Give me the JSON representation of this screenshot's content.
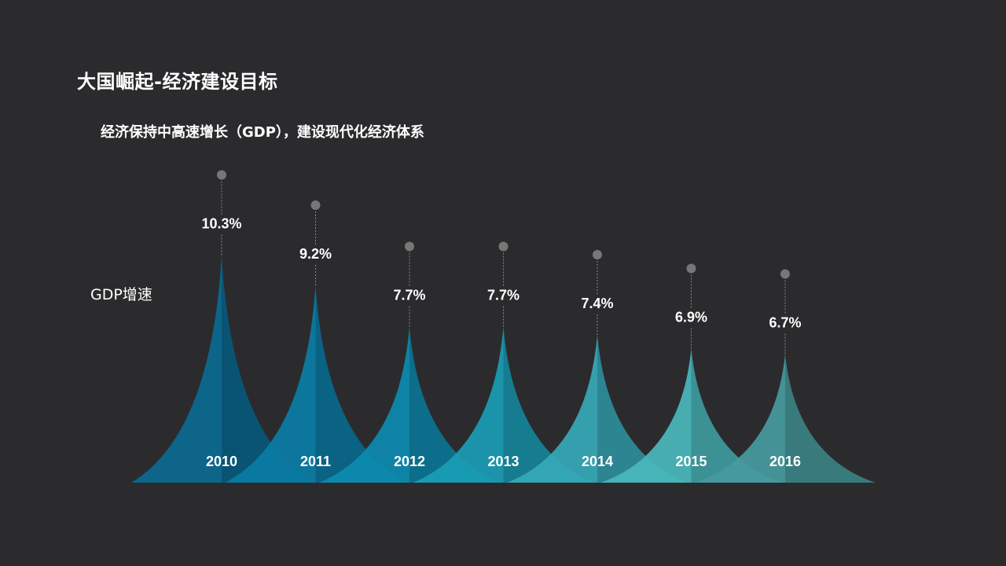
{
  "title": "大国崛起-经济建设目标",
  "subtitle": "经济保持中高速增长（GDP），建设现代化经济体系",
  "chart_data": {
    "type": "area",
    "ylabel": "GDP增速",
    "categories": [
      "2010",
      "2011",
      "2012",
      "2013",
      "2014",
      "2015",
      "2016"
    ],
    "values": [
      10.3,
      9.2,
      7.7,
      7.7,
      7.4,
      6.9,
      6.7
    ],
    "labels": [
      "10.3%",
      "9.2%",
      "7.7%",
      "7.7%",
      "7.4%",
      "6.9%",
      "6.7%"
    ],
    "colors": [
      "#0b6a92",
      "#0a7da6",
      "#0d8bb0",
      "#1a9db6",
      "#36a9b8",
      "#4ab8bd",
      "#489ba0"
    ]
  }
}
